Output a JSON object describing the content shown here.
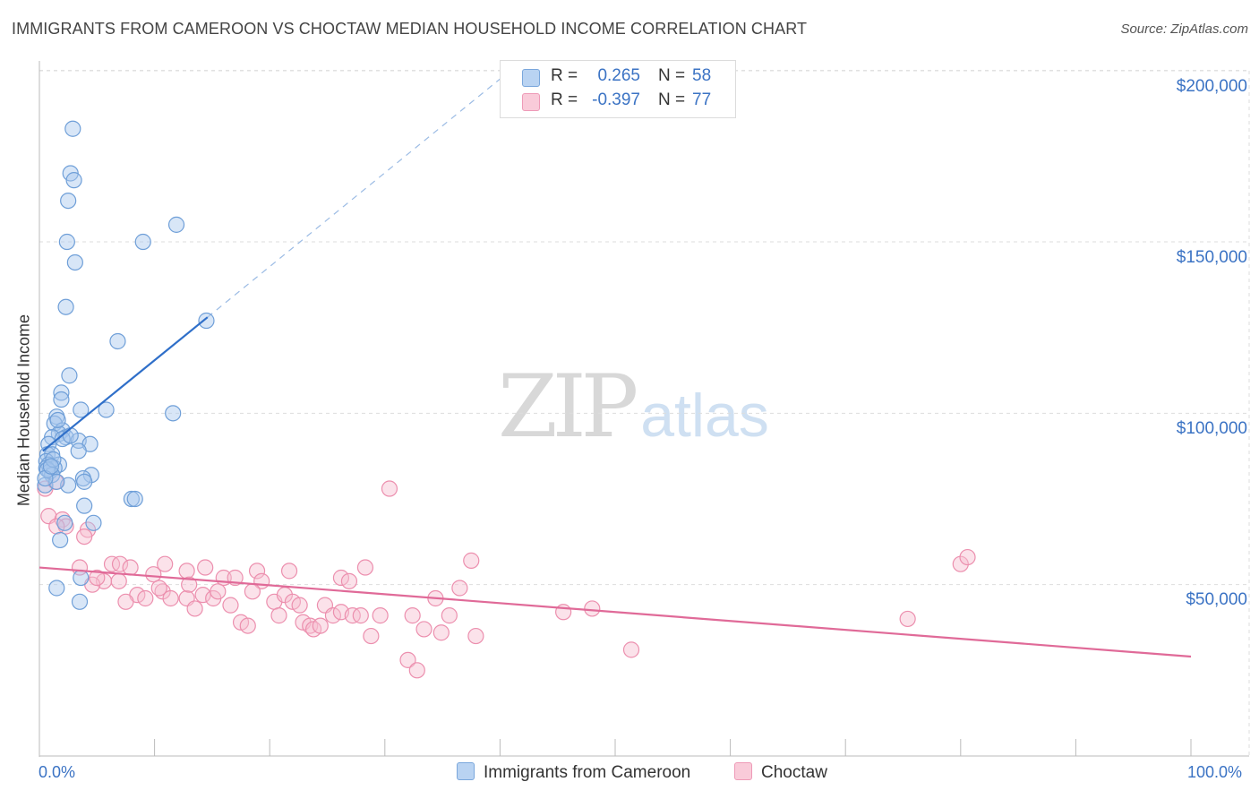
{
  "header": {
    "title": "IMMIGRANTS FROM CAMEROON VS CHOCTAW MEDIAN HOUSEHOLD INCOME CORRELATION CHART",
    "source": "Source: ZipAtlas.com"
  },
  "watermark": {
    "zip": "ZIP",
    "atlas": "atlas"
  },
  "legend": {
    "rows": [
      {
        "r_label": "R =",
        "r_value": "0.265",
        "n_label": "N =",
        "n_value": "58"
      },
      {
        "r_label": "R =",
        "r_value": "-0.397",
        "n_label": "N =",
        "n_value": "77"
      }
    ]
  },
  "colors": {
    "blue_fill": "#a9c8ee",
    "blue_stroke": "#6f9fd8",
    "blue_line": "#2f6fc9",
    "pink_fill": "#f6bfd0",
    "pink_stroke": "#ec8fae",
    "pink_line": "#e06a98",
    "grid": "#dddddd",
    "tick_text": "#3b73c4"
  },
  "chart_data": {
    "type": "scatter",
    "title": "IMMIGRANTS FROM CAMEROON VS CHOCTAW MEDIAN HOUSEHOLD INCOME CORRELATION CHART",
    "xlabel": "",
    "ylabel": "Median Household Income",
    "xlim": [
      0,
      100
    ],
    "ylim": [
      0,
      210000
    ],
    "x_tick_labels": [
      "0.0%",
      "100.0%"
    ],
    "y_ticks": [
      50000,
      100000,
      150000,
      200000
    ],
    "y_tick_labels": [
      "$50,000",
      "$100,000",
      "$150,000",
      "$200,000"
    ],
    "grid": true,
    "legend_position": "top-center",
    "series": [
      {
        "name": "Immigrants from Cameroon",
        "color": "#a9c8ee",
        "r": 0.265,
        "n": 58,
        "trend": {
          "x0": 0.3,
          "y0": 89000,
          "x1": 14.6,
          "y1": 128000,
          "dashed_to_x": 42,
          "dashed_to_y": 203000
        },
        "points": [
          [
            2.9,
            183000
          ],
          [
            2.7,
            170000
          ],
          [
            3.0,
            168000
          ],
          [
            2.5,
            162000
          ],
          [
            2.4,
            150000
          ],
          [
            3.1,
            144000
          ],
          [
            9.0,
            150000
          ],
          [
            11.9,
            155000
          ],
          [
            2.3,
            131000
          ],
          [
            14.5,
            127000
          ],
          [
            6.8,
            121000
          ],
          [
            2.6,
            111000
          ],
          [
            1.9,
            106000
          ],
          [
            1.9,
            104000
          ],
          [
            3.6,
            101000
          ],
          [
            5.8,
            101000
          ],
          [
            11.6,
            100000
          ],
          [
            1.5,
            99000
          ],
          [
            1.3,
            97000
          ],
          [
            2.0,
            95000
          ],
          [
            1.7,
            94000
          ],
          [
            2.3,
            93000
          ],
          [
            1.1,
            93000
          ],
          [
            3.4,
            92000
          ],
          [
            4.4,
            91000
          ],
          [
            0.8,
            91000
          ],
          [
            3.4,
            89000
          ],
          [
            0.7,
            88000
          ],
          [
            1.1,
            88000
          ],
          [
            0.6,
            86000
          ],
          [
            1.7,
            85000
          ],
          [
            0.8,
            85000
          ],
          [
            1.3,
            84000
          ],
          [
            0.6,
            84000
          ],
          [
            0.9,
            83000
          ],
          [
            1.1,
            82000
          ],
          [
            4.5,
            82000
          ],
          [
            3.8,
            81000
          ],
          [
            3.9,
            80000
          ],
          [
            2.5,
            79000
          ],
          [
            0.5,
            79000
          ],
          [
            1.5,
            80000
          ],
          [
            8.0,
            75000
          ],
          [
            8.3,
            75000
          ],
          [
            3.9,
            73000
          ],
          [
            4.7,
            68000
          ],
          [
            2.2,
            68000
          ],
          [
            1.8,
            63000
          ],
          [
            3.6,
            52000
          ],
          [
            1.5,
            49000
          ],
          [
            3.5,
            45000
          ],
          [
            0.7,
            83500
          ],
          [
            1.2,
            86500
          ],
          [
            2.0,
            92500
          ],
          [
            0.5,
            81000
          ],
          [
            1.0,
            84500
          ],
          [
            2.7,
            93500
          ],
          [
            1.6,
            98000
          ]
        ]
      },
      {
        "name": "Choctaw",
        "color": "#f6bfd0",
        "r": -0.397,
        "n": 77,
        "trend": {
          "x0": 0,
          "y0": 55000,
          "x1": 100,
          "y1": 29000
        },
        "points": [
          [
            0.5,
            78000
          ],
          [
            1.4,
            80000
          ],
          [
            0.8,
            70000
          ],
          [
            2.0,
            69000
          ],
          [
            2.3,
            67000
          ],
          [
            4.2,
            66000
          ],
          [
            1.5,
            67000
          ],
          [
            3.9,
            64000
          ],
          [
            6.3,
            56000
          ],
          [
            7.0,
            56000
          ],
          [
            7.9,
            55000
          ],
          [
            3.5,
            55000
          ],
          [
            5.6,
            51000
          ],
          [
            6.9,
            51000
          ],
          [
            4.6,
            50000
          ],
          [
            9.9,
            53000
          ],
          [
            10.9,
            56000
          ],
          [
            12.8,
            54000
          ],
          [
            14.4,
            55000
          ],
          [
            16.0,
            52000
          ],
          [
            18.9,
            54000
          ],
          [
            19.3,
            51000
          ],
          [
            21.7,
            54000
          ],
          [
            26.2,
            52000
          ],
          [
            26.9,
            51000
          ],
          [
            28.3,
            55000
          ],
          [
            10.7,
            48000
          ],
          [
            8.5,
            47000
          ],
          [
            9.2,
            46000
          ],
          [
            10.4,
            49000
          ],
          [
            11.4,
            46000
          ],
          [
            12.8,
            46000
          ],
          [
            13.5,
            43000
          ],
          [
            14.2,
            47000
          ],
          [
            15.1,
            46000
          ],
          [
            15.5,
            48000
          ],
          [
            16.6,
            44000
          ],
          [
            17.5,
            39000
          ],
          [
            18.1,
            38000
          ],
          [
            18.5,
            48000
          ],
          [
            20.4,
            45000
          ],
          [
            20.8,
            41000
          ],
          [
            21.3,
            47000
          ],
          [
            22.0,
            45000
          ],
          [
            22.6,
            44000
          ],
          [
            22.9,
            39000
          ],
          [
            23.5,
            38000
          ],
          [
            23.8,
            37000
          ],
          [
            24.4,
            38000
          ],
          [
            24.8,
            44000
          ],
          [
            25.5,
            41000
          ],
          [
            26.2,
            42000
          ],
          [
            27.2,
            41000
          ],
          [
            27.9,
            41000
          ],
          [
            28.8,
            35000
          ],
          [
            29.6,
            41000
          ],
          [
            30.4,
            78000
          ],
          [
            32.0,
            28000
          ],
          [
            32.4,
            41000
          ],
          [
            33.4,
            37000
          ],
          [
            34.4,
            46000
          ],
          [
            34.9,
            36000
          ],
          [
            35.6,
            41000
          ],
          [
            36.5,
            49000
          ],
          [
            37.5,
            57000
          ],
          [
            37.9,
            35000
          ],
          [
            45.5,
            42000
          ],
          [
            48.0,
            43000
          ],
          [
            51.4,
            31000
          ],
          [
            75.4,
            40000
          ],
          [
            80.0,
            56000
          ],
          [
            80.6,
            58000
          ],
          [
            32.8,
            25000
          ],
          [
            17.0,
            52000
          ],
          [
            13.0,
            50000
          ],
          [
            7.5,
            45000
          ],
          [
            5.0,
            52000
          ]
        ]
      }
    ]
  },
  "axes": {
    "x_left_label": "0.0%",
    "x_right_label": "100.0%",
    "y_labels": [
      "$200,000",
      "$150,000",
      "$100,000",
      "$50,000"
    ]
  },
  "bottom_legend": {
    "items": [
      {
        "label": "Immigrants from Cameroon"
      },
      {
        "label": "Choctaw"
      }
    ]
  }
}
